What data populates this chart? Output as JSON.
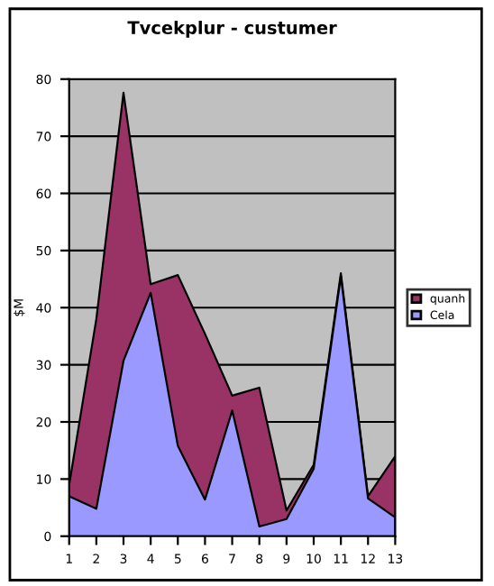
{
  "chart_data": {
    "type": "area",
    "title": "Tvcekplur - custumer",
    "ylabel": "$M",
    "categories": [
      "1",
      "2",
      "3",
      "4",
      "5",
      "6",
      "7",
      "8",
      "9",
      "10",
      "11",
      "12",
      "13"
    ],
    "series": [
      {
        "name": "quanh",
        "color": "#993366",
        "values": [
          9,
          38,
          77.6,
          44.1,
          45.7,
          35.4,
          24.6,
          26,
          4.5,
          12.5,
          46,
          7,
          14
        ]
      },
      {
        "name": "Cela",
        "color": "#9999ff",
        "values": [
          7,
          4.8,
          30.7,
          42.6,
          15.8,
          6.4,
          22,
          1.7,
          3,
          11.8,
          45.5,
          6.6,
          3.3
        ]
      }
    ],
    "ylim": [
      0,
      80
    ],
    "yticks": [
      0,
      10,
      20,
      30,
      40,
      50,
      60,
      70,
      80
    ],
    "grid": "y",
    "legend": "right"
  }
}
